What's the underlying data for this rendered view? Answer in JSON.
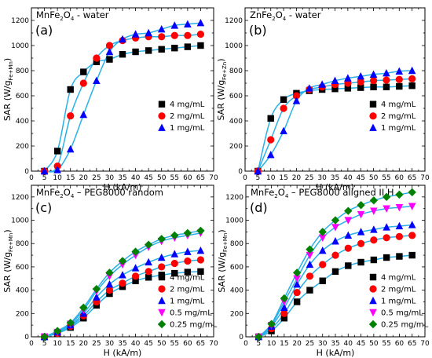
{
  "chart_data": [
    {
      "type": "scatter",
      "letter": "(a)",
      "title": {
        "base": "MnFe",
        "s1": "2",
        "mid": "O",
        "s2": "4",
        "tail": " - water"
      },
      "xlabel": "H (kA/m)",
      "ylabel": {
        "main": "SAR (W/g",
        "sub": "Fe+Mn",
        "close": ")"
      },
      "xlim": [
        0,
        70
      ],
      "ylim": [
        0,
        1300
      ],
      "xticks": [
        "0",
        "5",
        "10",
        "15",
        "20",
        "25",
        "30",
        "35",
        "40",
        "45",
        "50",
        "55",
        "60",
        "65",
        "70"
      ],
      "yticks": [
        "0",
        "200",
        "400",
        "600",
        "800",
        "1000",
        "1200"
      ],
      "legend_position": "center-right",
      "fit_curves": true,
      "x": [
        5,
        10,
        15,
        20,
        25,
        30,
        35,
        40,
        45,
        50,
        55,
        60,
        65
      ],
      "series": [
        {
          "name": "4 mg/mL",
          "marker": "square",
          "color": "#000000",
          "values": [
            0,
            160,
            650,
            790,
            870,
            890,
            930,
            950,
            960,
            970,
            980,
            990,
            1000
          ]
        },
        {
          "name": "2 mg/mL",
          "marker": "circle",
          "color": "#ff0000",
          "values": [
            0,
            40,
            440,
            700,
            900,
            1000,
            1040,
            1060,
            1070,
            1070,
            1080,
            1080,
            1090
          ]
        },
        {
          "name": "1 mg/mL",
          "marker": "triangle-up",
          "color": "#0000ff",
          "values": [
            0,
            10,
            175,
            450,
            720,
            950,
            1050,
            1090,
            1100,
            1130,
            1160,
            1170,
            1180
          ]
        }
      ]
    },
    {
      "type": "scatter",
      "letter": "(b)",
      "title": {
        "base": "ZnFe",
        "s1": "2",
        "mid": "O",
        "s2": "4",
        "tail": " - water"
      },
      "xlabel": "H (kA/m)",
      "ylabel": {
        "main": "SAR (W/g",
        "sub": "Fe+Zn",
        "close": ")"
      },
      "xlim": [
        0,
        70
      ],
      "ylim": [
        0,
        1300
      ],
      "xticks": [
        "0",
        "5",
        "10",
        "15",
        "20",
        "25",
        "30",
        "35",
        "40",
        "45",
        "50",
        "55",
        "60",
        "65",
        "70"
      ],
      "yticks": [
        "0",
        "200",
        "400",
        "600",
        "800",
        "1000",
        "1200"
      ],
      "legend_position": "center-right",
      "fit_curves": true,
      "x": [
        5,
        10,
        15,
        20,
        25,
        30,
        35,
        40,
        45,
        50,
        55,
        60,
        65
      ],
      "series": [
        {
          "name": "4 mg/mL",
          "marker": "square",
          "color": "#000000",
          "values": [
            0,
            420,
            570,
            620,
            640,
            650,
            655,
            660,
            665,
            670,
            670,
            675,
            680
          ]
        },
        {
          "name": "2 mg/mL",
          "marker": "circle",
          "color": "#ff0000",
          "values": [
            0,
            250,
            500,
            600,
            650,
            670,
            690,
            700,
            710,
            720,
            725,
            730,
            735
          ]
        },
        {
          "name": "1 mg/mL",
          "marker": "triangle-up",
          "color": "#0000ff",
          "values": [
            0,
            130,
            320,
            560,
            660,
            690,
            720,
            740,
            755,
            770,
            780,
            795,
            800
          ]
        }
      ]
    },
    {
      "type": "scatter",
      "letter": "(c)",
      "title": {
        "base": "MnFe",
        "s1": "2",
        "mid": "O",
        "s2": "4",
        "tail": " – PEG8000 random"
      },
      "xlabel": "H (kA/m)",
      "ylabel": {
        "main": "SAR (W/g",
        "sub": "Fe+Mn",
        "close": ")"
      },
      "xlim": [
        0,
        70
      ],
      "ylim": [
        0,
        1300
      ],
      "xticks": [
        "0",
        "5",
        "10",
        "15",
        "20",
        "25",
        "30",
        "35",
        "40",
        "45",
        "50",
        "55",
        "60",
        "65",
        "70"
      ],
      "yticks": [
        "0",
        "200",
        "400",
        "600",
        "800",
        "1000",
        "1200"
      ],
      "legend_position": "bottom-right",
      "fit_curves": true,
      "x": [
        5,
        10,
        15,
        20,
        25,
        30,
        35,
        40,
        45,
        50,
        55,
        60,
        65
      ],
      "series": [
        {
          "name": "4 mg/mL",
          "marker": "square",
          "color": "#000000",
          "values": [
            0,
            30,
            80,
            160,
            270,
            370,
            430,
            480,
            510,
            530,
            545,
            555,
            560
          ]
        },
        {
          "name": "2 mg/mL",
          "marker": "circle",
          "color": "#ff0000",
          "values": [
            0,
            30,
            90,
            180,
            300,
            400,
            460,
            520,
            560,
            600,
            630,
            650,
            660
          ]
        },
        {
          "name": "1 mg/mL",
          "marker": "triangle-up",
          "color": "#0000ff",
          "values": [
            0,
            40,
            100,
            200,
            340,
            450,
            530,
            590,
            640,
            680,
            710,
            730,
            740
          ]
        },
        {
          "name": "0.5 mg/mL",
          "marker": "triangle-down",
          "color": "#ff00ff",
          "values": [
            0,
            40,
            110,
            230,
            390,
            520,
            620,
            700,
            770,
            820,
            850,
            870,
            890
          ]
        },
        {
          "name": "0.25 mg/mL",
          "marker": "diamond",
          "color": "#008000",
          "values": [
            0,
            50,
            120,
            250,
            410,
            550,
            650,
            730,
            790,
            840,
            870,
            890,
            910
          ]
        }
      ]
    },
    {
      "type": "scatter",
      "letter": "(d)",
      "title": {
        "base": "MnFe",
        "s1": "2",
        "mid": "O",
        "s2": "4",
        "tail": " – PEG8000 aligned II H"
      },
      "xlabel": "H (kA/m)",
      "ylabel": {
        "main": "SAR (W/g",
        "sub": "Fe+Mn",
        "close": ")"
      },
      "xlim": [
        0,
        70
      ],
      "ylim": [
        0,
        1300
      ],
      "xticks": [
        "0",
        "5",
        "10",
        "15",
        "20",
        "25",
        "30",
        "35",
        "40",
        "45",
        "50",
        "55",
        "60",
        "65",
        "70"
      ],
      "yticks": [
        "0",
        "200",
        "400",
        "600",
        "800",
        "1000",
        "1200"
      ],
      "legend_position": "bottom-right",
      "fit_curves": true,
      "x": [
        5,
        10,
        15,
        20,
        25,
        30,
        35,
        40,
        45,
        50,
        55,
        60,
        65
      ],
      "series": [
        {
          "name": "4 mg/mL",
          "marker": "square",
          "color": "#000000",
          "values": [
            0,
            50,
            160,
            300,
            400,
            480,
            560,
            610,
            640,
            660,
            680,
            690,
            700
          ]
        },
        {
          "name": "2 mg/mL",
          "marker": "circle",
          "color": "#ff0000",
          "values": [
            0,
            70,
            200,
            380,
            520,
            620,
            700,
            760,
            800,
            830,
            850,
            860,
            870
          ]
        },
        {
          "name": "1 mg/mL",
          "marker": "triangle-up",
          "color": "#0000ff",
          "values": [
            0,
            90,
            250,
            450,
            620,
            740,
            820,
            870,
            900,
            920,
            940,
            950,
            960
          ]
        },
        {
          "name": "0.5 mg/mL",
          "marker": "triangle-down",
          "color": "#ff00ff",
          "values": [
            0,
            100,
            300,
            500,
            700,
            850,
            940,
            1000,
            1050,
            1080,
            1100,
            1110,
            1120
          ]
        },
        {
          "name": "0.25 mg/mL",
          "marker": "diamond",
          "color": "#008000",
          "values": [
            0,
            110,
            330,
            550,
            750,
            900,
            1000,
            1080,
            1130,
            1170,
            1200,
            1220,
            1240
          ]
        }
      ]
    }
  ]
}
